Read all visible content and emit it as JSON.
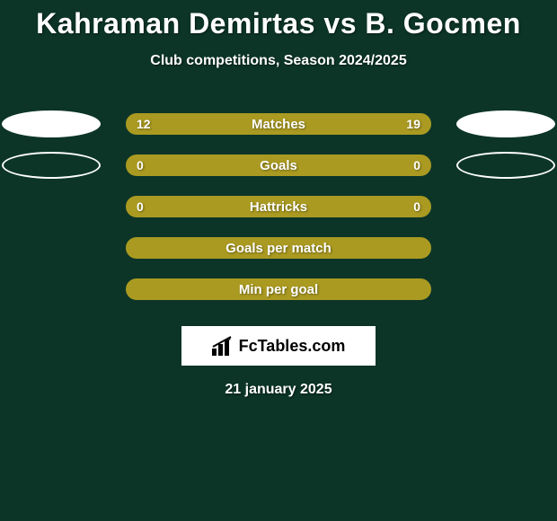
{
  "colors": {
    "background": "#0c3528",
    "text": "#ffffff",
    "bar_fill": "#aa9a21",
    "bar_border": "#aa9a21",
    "bar_track": "#0c3528",
    "avatar_fill": "#ffffff",
    "logo_bg": "#ffffff"
  },
  "title": "Kahraman Demirtas vs B. Gocmen",
  "subtitle": "Club competitions, Season 2024/2025",
  "date": "21 january 2025",
  "logo": {
    "text": "FcTables.com"
  },
  "bars": [
    {
      "label": "Matches",
      "left": "12",
      "right": "19",
      "left_pct": 38.7,
      "show_avatars": true,
      "avatar_style": "filled"
    },
    {
      "label": "Goals",
      "left": "0",
      "right": "0",
      "left_pct": 50,
      "show_avatars": true,
      "avatar_style": "outline"
    },
    {
      "label": "Hattricks",
      "left": "0",
      "right": "0",
      "left_pct": 50,
      "show_avatars": false
    },
    {
      "label": "Goals per match",
      "left": "",
      "right": "",
      "left_pct": 100,
      "show_avatars": false
    },
    {
      "label": "Min per goal",
      "left": "",
      "right": "",
      "left_pct": 100,
      "show_avatars": false
    }
  ]
}
